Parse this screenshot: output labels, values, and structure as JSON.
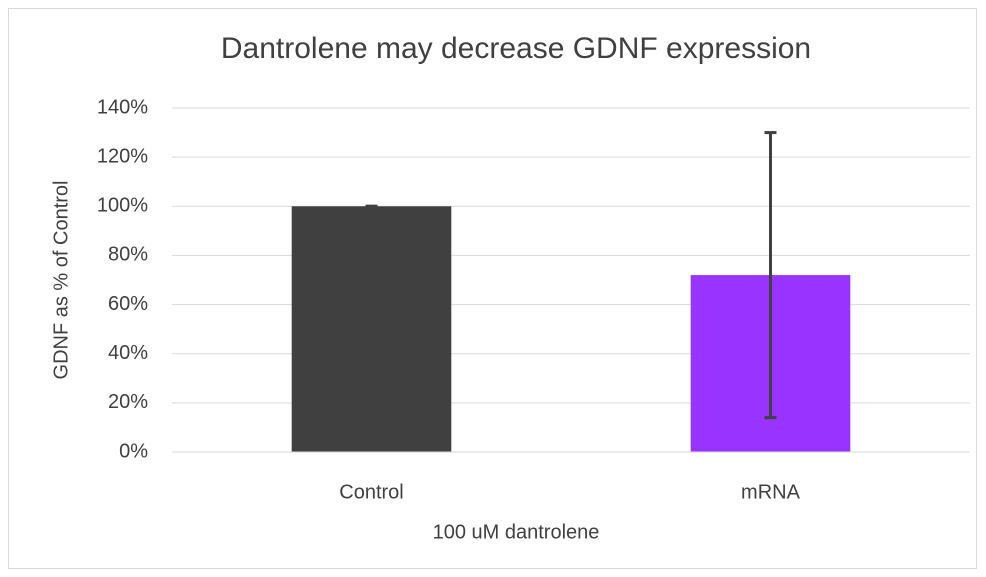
{
  "chart_data": {
    "type": "bar",
    "title": "Dantrolene may decrease GDNF expression",
    "x_label": "100 uM dantrolene",
    "y_label": "GDNF as % of Control",
    "categories": [
      "Control",
      "mRNA"
    ],
    "values": [
      100,
      72
    ],
    "errors": [
      0,
      58
    ],
    "colors": [
      "#404040",
      "#9933ff"
    ],
    "ylim": [
      0,
      140
    ],
    "yticks": [
      {
        "value": 0,
        "label": "0%"
      },
      {
        "value": 20,
        "label": "20%"
      },
      {
        "value": 40,
        "label": "40%"
      },
      {
        "value": 60,
        "label": "60%"
      },
      {
        "value": 80,
        "label": "80%"
      },
      {
        "value": 100,
        "label": "100%"
      },
      {
        "value": 120,
        "label": "120%"
      },
      {
        "value": 140,
        "label": "140%"
      }
    ],
    "grid": true
  }
}
